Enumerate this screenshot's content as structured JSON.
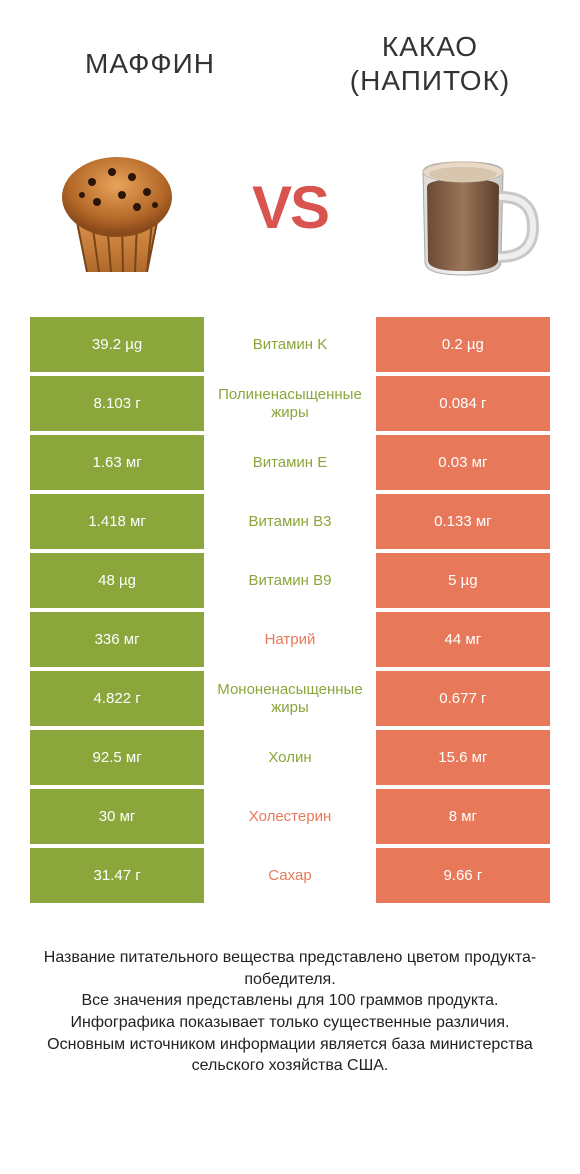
{
  "colors": {
    "left": "#8ba63a",
    "right": "#e7795a",
    "vs": "#d9534f",
    "bg": "#ffffff"
  },
  "header": {
    "left_title": "МАФФИН",
    "right_title": "КАКАО (НАПИТОК)",
    "vs_label": "VS"
  },
  "rows": [
    {
      "left": "39.2 µg",
      "label": "Витамин K",
      "right": "0.2 µg",
      "winner": "left"
    },
    {
      "left": "8.103 г",
      "label": "Полиненасыщенные жиры",
      "right": "0.084 г",
      "winner": "left"
    },
    {
      "left": "1.63 мг",
      "label": "Витамин E",
      "right": "0.03 мг",
      "winner": "left"
    },
    {
      "left": "1.418 мг",
      "label": "Витамин B3",
      "right": "0.133 мг",
      "winner": "left"
    },
    {
      "left": "48 µg",
      "label": "Витамин B9",
      "right": "5 µg",
      "winner": "left"
    },
    {
      "left": "336 мг",
      "label": "Натрий",
      "right": "44 мг",
      "winner": "right"
    },
    {
      "left": "4.822 г",
      "label": "Мононенасыщенные жиры",
      "right": "0.677 г",
      "winner": "left"
    },
    {
      "left": "92.5 мг",
      "label": "Холин",
      "right": "15.6 мг",
      "winner": "left"
    },
    {
      "left": "30 мг",
      "label": "Холестерин",
      "right": "8 мг",
      "winner": "right"
    },
    {
      "left": "31.47 г",
      "label": "Сахар",
      "right": "9.66 г",
      "winner": "right"
    }
  ],
  "footnote": "Название питательного вещества представлено цветом продукта-победителя.\nВсе значения представлены для 100 граммов продукта.\nИнфографика показывает только существенные различия.\nОсновным источником информации является база министерства сельского хозяйства США."
}
